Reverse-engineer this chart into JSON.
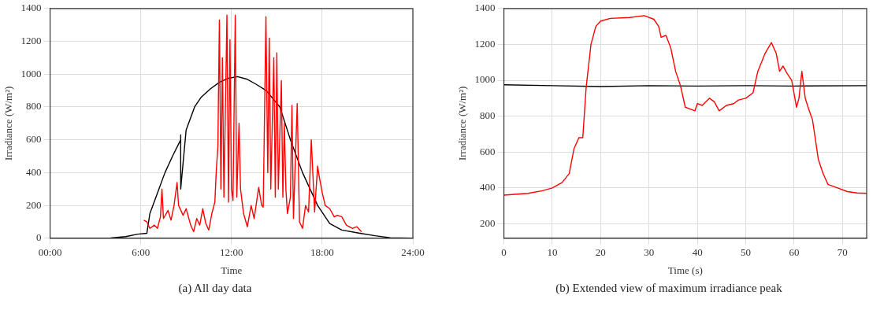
{
  "chart_data": [
    {
      "type": "line",
      "xlabel": "Time",
      "ylabel": "Irradiance (W/m²)",
      "annotations": [
        "(a) All day data"
      ],
      "xlim": [
        0,
        24
      ],
      "ylim": [
        0,
        1400
      ],
      "xticks": [
        {
          "value": 0,
          "label": "00:00"
        },
        {
          "value": 6,
          "label": "6:00"
        },
        {
          "value": 12,
          "label": "12:00"
        },
        {
          "value": 18,
          "label": "18:00"
        },
        {
          "value": 24,
          "label": "24:00"
        }
      ],
      "yticks": [
        0,
        200,
        400,
        600,
        800,
        1000,
        1200,
        1400
      ],
      "grid": true,
      "line_style": "solid",
      "marker": "none",
      "series": [
        {
          "color": "#ff0000",
          "x": [
            6.2,
            6.4,
            6.6,
            6.9,
            7.1,
            7.3,
            7.4,
            7.5,
            7.8,
            8.0,
            8.2,
            8.4,
            8.5,
            8.8,
            9.0,
            9.3,
            9.5,
            9.7,
            9.9,
            10.1,
            10.3,
            10.5,
            10.7,
            10.9,
            11.0,
            11.1,
            11.2,
            11.3,
            11.4,
            11.5,
            11.7,
            11.8,
            11.9,
            12.0,
            12.1,
            12.25,
            12.35,
            12.5,
            12.6,
            12.8,
            13.05,
            13.3,
            13.5,
            13.8,
            14.0,
            14.1,
            14.28,
            14.4,
            14.5,
            14.6,
            14.8,
            14.9,
            15.0,
            15.1,
            15.3,
            15.4,
            15.5,
            15.6,
            15.7,
            15.9,
            16.0,
            16.1,
            16.35,
            16.5,
            16.7,
            16.9,
            17.1,
            17.28,
            17.5,
            17.7,
            17.8,
            18.0,
            18.2,
            18.5,
            18.8,
            19.0,
            19.3,
            19.6,
            20.0,
            20.3,
            20.6
          ],
          "values": [
            110,
            100,
            60,
            80,
            60,
            130,
            300,
            120,
            170,
            110,
            200,
            340,
            200,
            140,
            180,
            80,
            40,
            120,
            80,
            180,
            90,
            50,
            150,
            220,
            420,
            560,
            1330,
            300,
            1100,
            250,
            1360,
            220,
            1210,
            300,
            230,
            1360,
            250,
            700,
            300,
            150,
            70,
            200,
            120,
            310,
            200,
            190,
            1350,
            400,
            1220,
            300,
            1100,
            250,
            1130,
            300,
            960,
            250,
            700,
            300,
            150,
            250,
            810,
            120,
            820,
            100,
            60,
            200,
            160,
            600,
            160,
            440,
            380,
            280,
            200,
            180,
            130,
            140,
            130,
            80,
            60,
            70,
            40
          ]
        },
        {
          "color": "#000000",
          "x": [
            0,
            4,
            5,
            5.8,
            6.4,
            6.6,
            7.0,
            7.6,
            8.1,
            8.64,
            8.64,
            8.64,
            9.0,
            9.56,
            10.0,
            10.6,
            11.2,
            11.8,
            12.4,
            13.0,
            13.6,
            14.3,
            15.2,
            15.9,
            16.7,
            17.7,
            18.5,
            19.3,
            20.5,
            21.5,
            22.5,
            24
          ],
          "values": [
            0,
            2,
            10,
            25,
            30,
            150,
            250,
            400,
            500,
            600,
            630,
            300,
            660,
            800,
            860,
            910,
            950,
            975,
            985,
            970,
            940,
            900,
            800,
            600,
            400,
            200,
            90,
            50,
            30,
            15,
            3,
            0
          ]
        }
      ]
    },
    {
      "type": "line",
      "xlabel": "Time (s)",
      "ylabel": "Irradiance (W/m²)",
      "annotations": [
        "(b) Extended view of maximum irradiance peak"
      ],
      "xlim": [
        0,
        75
      ],
      "ylim": [
        120,
        1400
      ],
      "xticks": [
        0,
        10,
        20,
        30,
        40,
        50,
        60,
        70
      ],
      "yticks": [
        200,
        400,
        600,
        800,
        1000,
        1200,
        1400
      ],
      "grid": true,
      "line_style": "solid",
      "marker": "none",
      "series": [
        {
          "color": "#ff0000",
          "x": [
            0,
            5,
            8,
            10,
            12,
            13.5,
            14.5,
            15.5,
            16.3,
            17,
            18,
            19,
            20,
            22,
            26,
            29,
            31,
            32,
            32.5,
            33.5,
            34.5,
            35.5,
            36.5,
            37.5,
            38.5,
            39.5,
            40,
            41,
            42.5,
            43.5,
            44.5,
            46,
            47.5,
            48.5,
            50,
            51.5,
            52.5,
            54,
            55.3,
            56.3,
            57,
            57.7,
            58.5,
            59.5,
            60.5,
            61,
            61.6,
            62.3,
            63,
            63.8,
            65,
            66,
            67,
            69,
            71,
            73,
            75
          ],
          "values": [
            360,
            370,
            385,
            400,
            430,
            480,
            620,
            680,
            680,
            960,
            1200,
            1300,
            1330,
            1345,
            1350,
            1360,
            1340,
            1300,
            1240,
            1250,
            1180,
            1050,
            970,
            850,
            840,
            830,
            870,
            860,
            900,
            880,
            830,
            860,
            870,
            890,
            900,
            930,
            1050,
            1150,
            1210,
            1150,
            1050,
            1080,
            1040,
            1000,
            850,
            900,
            1050,
            900,
            840,
            780,
            560,
            480,
            420,
            400,
            380,
            372,
            370
          ]
        },
        {
          "color": "#000000",
          "x": [
            0,
            10,
            20,
            30,
            40,
            50,
            60,
            75
          ],
          "values": [
            975,
            970,
            965,
            970,
            968,
            970,
            968,
            970
          ]
        }
      ]
    }
  ]
}
